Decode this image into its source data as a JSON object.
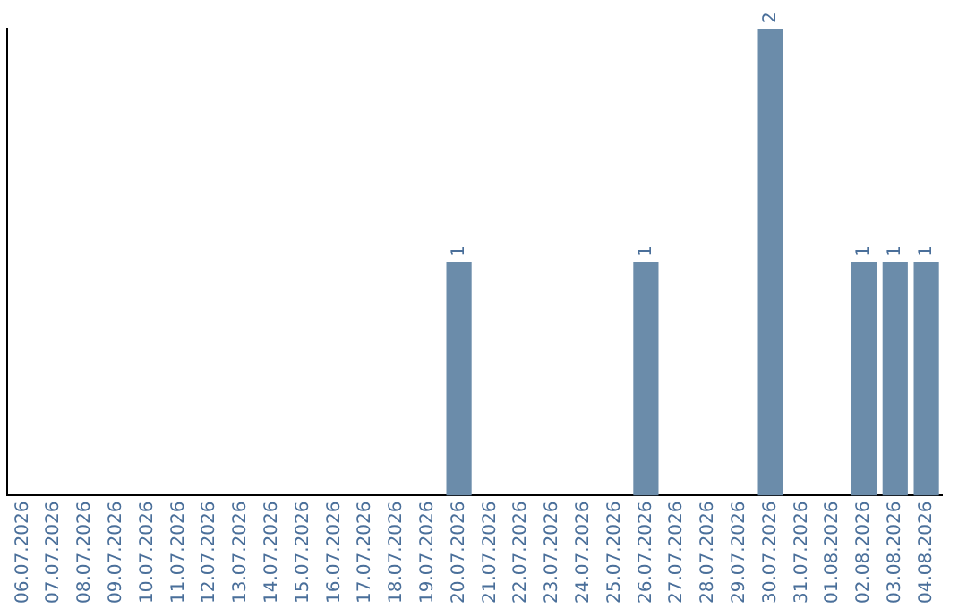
{
  "chart_data": {
    "type": "bar",
    "categories": [
      "06.07.2026",
      "07.07.2026",
      "08.07.2026",
      "09.07.2026",
      "10.07.2026",
      "11.07.2026",
      "12.07.2026",
      "13.07.2026",
      "14.07.2026",
      "15.07.2026",
      "16.07.2026",
      "17.07.2026",
      "18.07.2026",
      "19.07.2026",
      "20.07.2026",
      "21.07.2026",
      "22.07.2026",
      "23.07.2026",
      "24.07.2026",
      "25.07.2026",
      "26.07.2026",
      "27.07.2026",
      "28.07.2026",
      "29.07.2026",
      "30.07.2026",
      "31.07.2026",
      "01.08.2026",
      "02.08.2026",
      "03.08.2026",
      "04.08.2026"
    ],
    "values": [
      null,
      null,
      null,
      null,
      null,
      null,
      null,
      null,
      null,
      null,
      null,
      null,
      null,
      null,
      1,
      null,
      null,
      null,
      null,
      null,
      1,
      null,
      null,
      null,
      2,
      null,
      null,
      1,
      1,
      1
    ],
    "data_labels": true,
    "color": "#6b8caa",
    "grid": false,
    "legend": false,
    "tick_labels": "x"
  }
}
